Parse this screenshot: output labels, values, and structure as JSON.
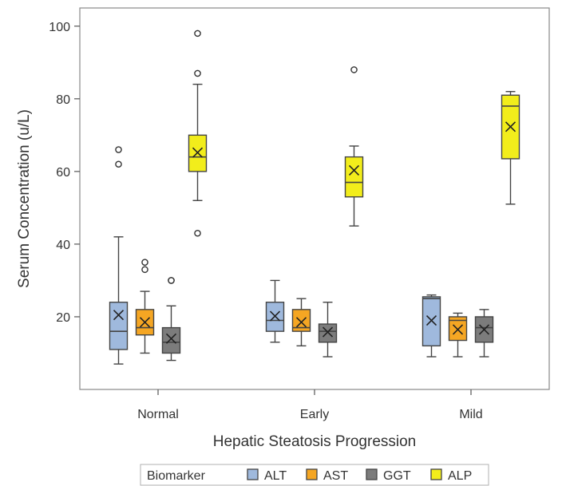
{
  "chart_data": {
    "type": "box",
    "xlabel": "Hepatic Steatosis Progression",
    "ylabel": "Serum Concentration (u/L)",
    "ylim": [
      0,
      105
    ],
    "yticks": [
      "20",
      "40",
      "60",
      "80",
      "100"
    ],
    "categories": [
      "Normal",
      "Early",
      "Mild"
    ],
    "legend": {
      "title": "Biomarker",
      "position": "bottom"
    },
    "series": [
      {
        "name": "ALT",
        "color": "#9fb9dd",
        "boxes": [
          {
            "min": 7,
            "q1": 11,
            "median": 16,
            "q3": 24,
            "max": 42,
            "mean": 20.5,
            "outliers": [
              62,
              66
            ]
          },
          {
            "min": 13,
            "q1": 16,
            "median": 19,
            "q3": 24,
            "max": 30,
            "mean": 20.2,
            "outliers": []
          },
          {
            "min": 9,
            "q1": 12,
            "median": 25,
            "q3": 25.5,
            "max": 26,
            "mean": 19,
            "outliers": []
          }
        ]
      },
      {
        "name": "AST",
        "color": "#f5a623",
        "boxes": [
          {
            "min": 10,
            "q1": 15,
            "median": 17,
            "q3": 22,
            "max": 27,
            "mean": 18.5,
            "outliers": [
              33,
              35
            ]
          },
          {
            "min": 12,
            "q1": 16,
            "median": 17,
            "q3": 22,
            "max": 25,
            "mean": 18.5,
            "outliers": []
          },
          {
            "min": 9,
            "q1": 13.5,
            "median": 19,
            "q3": 20,
            "max": 21,
            "mean": 16.5,
            "outliers": []
          }
        ]
      },
      {
        "name": "GGT",
        "color": "#7c7c7c",
        "boxes": [
          {
            "min": 8,
            "q1": 10,
            "median": 13,
            "q3": 17,
            "max": 23,
            "mean": 14,
            "outliers": [
              30,
              30
            ]
          },
          {
            "min": 9,
            "q1": 13,
            "median": 16,
            "q3": 18,
            "max": 24,
            "mean": 15.8,
            "outliers": []
          },
          {
            "min": 9,
            "q1": 13,
            "median": 17,
            "q3": 20,
            "max": 22,
            "mean": 16.5,
            "outliers": []
          }
        ]
      },
      {
        "name": "ALP",
        "color": "#f2ed1b",
        "boxes": [
          {
            "min": 52,
            "q1": 60,
            "median": 64,
            "q3": 70,
            "max": 84,
            "mean": 65.2,
            "outliers": [
              43,
              87,
              98
            ]
          },
          {
            "min": 45,
            "q1": 53,
            "median": 57,
            "q3": 64,
            "max": 67,
            "mean": 60.3,
            "outliers": [
              88
            ]
          },
          {
            "min": 51,
            "q1": 63.5,
            "median": 78,
            "q3": 81,
            "max": 82,
            "mean": 72.3,
            "outliers": []
          }
        ]
      }
    ]
  }
}
